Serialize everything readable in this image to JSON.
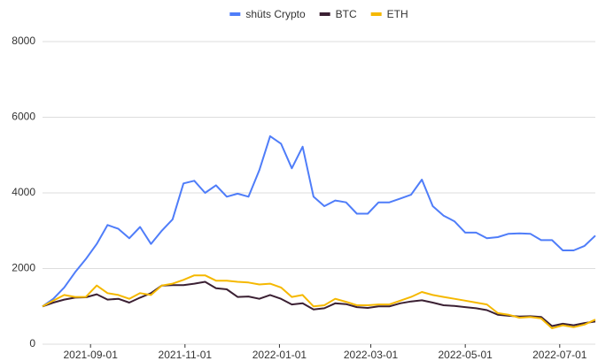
{
  "chart_data": {
    "type": "line",
    "x": [
      "2021-08-01",
      "2021-08-08",
      "2021-08-15",
      "2021-08-22",
      "2021-08-29",
      "2021-09-05",
      "2021-09-12",
      "2021-09-19",
      "2021-09-26",
      "2021-10-03",
      "2021-10-10",
      "2021-10-17",
      "2021-10-24",
      "2021-10-31",
      "2021-11-07",
      "2021-11-14",
      "2021-11-21",
      "2021-11-28",
      "2021-12-05",
      "2021-12-12",
      "2021-12-19",
      "2021-12-26",
      "2022-01-02",
      "2022-01-09",
      "2022-01-16",
      "2022-01-23",
      "2022-01-30",
      "2022-02-06",
      "2022-02-13",
      "2022-02-20",
      "2022-02-27",
      "2022-03-06",
      "2022-03-13",
      "2022-03-20",
      "2022-03-27",
      "2022-04-03",
      "2022-04-10",
      "2022-04-17",
      "2022-04-24",
      "2022-05-01",
      "2022-05-08",
      "2022-05-15",
      "2022-05-22",
      "2022-05-29",
      "2022-06-05",
      "2022-06-12",
      "2022-06-19",
      "2022-06-26",
      "2022-07-03",
      "2022-07-10",
      "2022-07-17",
      "2022-07-24"
    ],
    "series": [
      {
        "name": "shüts Crypto",
        "color": "#4f7df9",
        "values": [
          1000,
          1200,
          1500,
          1900,
          2250,
          2650,
          3150,
          3050,
          2800,
          3100,
          2650,
          3000,
          3300,
          4250,
          4320,
          4000,
          4200,
          3900,
          3980,
          3900,
          4600,
          5500,
          5300,
          4650,
          5220,
          3900,
          3650,
          3800,
          3750,
          3450,
          3450,
          3750,
          3750,
          3850,
          3950,
          4350,
          3650,
          3400,
          3250,
          2950,
          2950,
          2800,
          2830,
          2920,
          2930,
          2920,
          2750,
          2750,
          2480,
          2480,
          2600,
          2870
        ]
      },
      {
        "name": "BTC",
        "color": "#3b2033",
        "values": [
          1000,
          1100,
          1180,
          1230,
          1240,
          1320,
          1180,
          1200,
          1100,
          1230,
          1350,
          1550,
          1560,
          1560,
          1600,
          1650,
          1480,
          1450,
          1250,
          1260,
          1200,
          1300,
          1200,
          1050,
          1080,
          920,
          950,
          1080,
          1060,
          980,
          960,
          1000,
          1000,
          1080,
          1130,
          1160,
          1100,
          1030,
          1010,
          980,
          950,
          900,
          780,
          750,
          730,
          740,
          720,
          480,
          540,
          500,
          560,
          600
        ]
      },
      {
        "name": "ETH",
        "color": "#f5b800",
        "values": [
          1000,
          1150,
          1300,
          1250,
          1250,
          1550,
          1350,
          1300,
          1200,
          1350,
          1300,
          1550,
          1600,
          1700,
          1820,
          1820,
          1680,
          1680,
          1650,
          1630,
          1580,
          1600,
          1500,
          1250,
          1300,
          1000,
          1030,
          1200,
          1120,
          1030,
          1030,
          1050,
          1050,
          1150,
          1250,
          1380,
          1300,
          1250,
          1200,
          1150,
          1100,
          1050,
          820,
          780,
          700,
          720,
          680,
          420,
          500,
          450,
          520,
          650
        ]
      }
    ],
    "xlim": [
      "2021-08-01",
      "2022-07-24"
    ],
    "xticks": [
      "2021-09-01",
      "2021-11-01",
      "2022-01-01",
      "2022-03-01",
      "2022-05-01",
      "2022-07-01"
    ],
    "ylim": [
      0,
      8000
    ],
    "yticks": [
      0,
      2000,
      4000,
      6000,
      8000
    ],
    "grid": true,
    "legend": "top"
  }
}
